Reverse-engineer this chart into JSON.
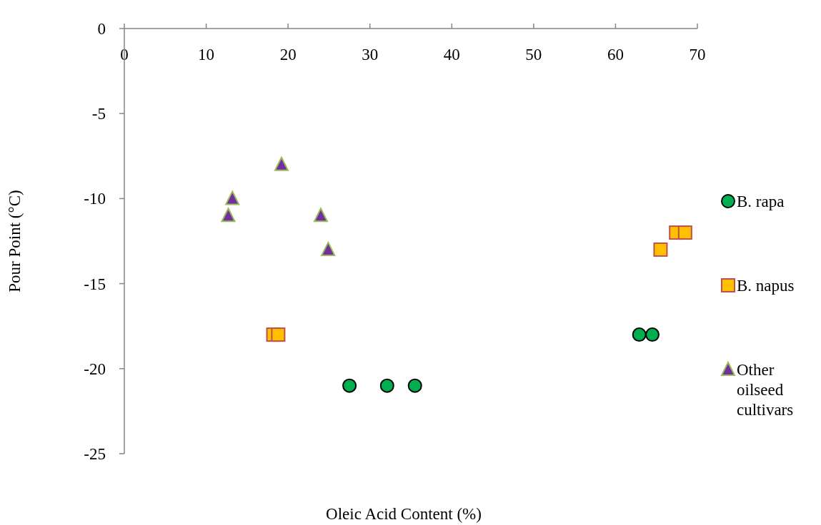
{
  "chart_data": {
    "type": "scatter",
    "xlabel": "Oleic Acid Content (%)",
    "ylabel": "Pour Point (°C)",
    "xlim": [
      0,
      70
    ],
    "xticks": [
      0,
      10,
      20,
      30,
      40,
      50,
      60,
      70
    ],
    "ylim": [
      -25,
      0
    ],
    "yticks": [
      -25,
      -20,
      -15,
      -10,
      -5,
      0
    ],
    "grid": false,
    "legend": "right",
    "series": [
      {
        "name": "B. rapa",
        "color": "#00b050",
        "marker": "circle",
        "x": [
          27.5,
          32.1,
          35.5,
          62.9,
          64.5
        ],
        "values": [
          -21,
          -21,
          -21,
          -18,
          -18
        ]
      },
      {
        "name": "B. napus",
        "color": "#ffc000",
        "marker": "square",
        "x": [
          18.2,
          18.8,
          65.5,
          67.4,
          68.5
        ],
        "values": [
          -18,
          -18,
          -13,
          -12,
          -12
        ]
      },
      {
        "name": "Other oilseed cultivars",
        "color": "#7030a0",
        "marker": "triangle",
        "x": [
          19.2,
          13.2,
          12.7,
          24.0,
          24.9
        ],
        "values": [
          -8,
          -10,
          -11,
          -11,
          -13
        ]
      }
    ]
  }
}
